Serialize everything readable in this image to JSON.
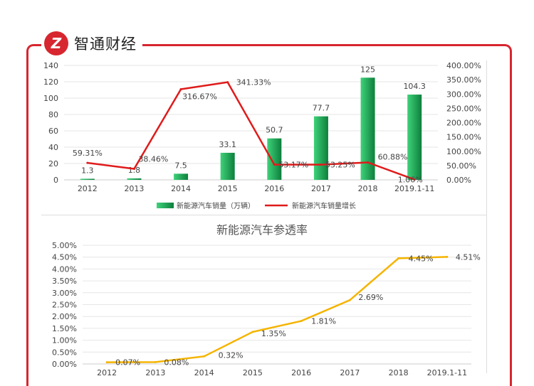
{
  "brand": {
    "name": "智通财经",
    "logo_text": "Z"
  },
  "chart_data": [
    {
      "type": "bar+line",
      "categories": [
        "2012",
        "2013",
        "2014",
        "2015",
        "2016",
        "2017",
        "2018",
        "2019.1-11"
      ],
      "series": [
        {
          "name": "新能源汽车销量（万辆）",
          "type": "bar",
          "axis": "left",
          "values": [
            1.3,
            1.8,
            7.5,
            33.1,
            50.7,
            77.7,
            125,
            104.3
          ],
          "labels": [
            "1.3",
            "1.8",
            "7.5",
            "33.1",
            "50.7",
            "77.7",
            "125",
            "104.3"
          ],
          "color": "#1aa152"
        },
        {
          "name": "新能源汽车销量增长",
          "type": "line",
          "axis": "right",
          "values": [
            59.31,
            38.46,
            316.67,
            341.33,
            53.17,
            53.25,
            60.88,
            1.06
          ],
          "labels": [
            "59.31%",
            "38.46%",
            "316.67%",
            "341.33%",
            "53.17%",
            "53.25%",
            "60.88%",
            "1.06%"
          ],
          "color": "#e01b1b"
        }
      ],
      "ylim": [
        0,
        140
      ],
      "yticks": [
        "0",
        "20",
        "40",
        "60",
        "80",
        "100",
        "120",
        "140"
      ],
      "y2lim": [
        0,
        400
      ],
      "y2ticks": [
        "0.00%",
        "50.00%",
        "100.00%",
        "150.00%",
        "200.00%",
        "250.00%",
        "300.00%",
        "350.00%",
        "400.00%"
      ],
      "legend": "bottom",
      "grid": true
    },
    {
      "type": "line",
      "title": "新能源汽车参透率",
      "categories": [
        "2012",
        "2013",
        "2014",
        "2015",
        "2016",
        "2017",
        "2018",
        "2019.1-11"
      ],
      "series": [
        {
          "name": "参透率",
          "values": [
            0.07,
            0.08,
            0.32,
            1.35,
            1.81,
            2.69,
            4.45,
            4.51
          ],
          "labels": [
            "0.07%",
            "0.08%",
            "0.32%",
            "1.35%",
            "1.81%",
            "2.69%",
            "4.45%",
            "4.51%"
          ],
          "color": "#f5b400"
        }
      ],
      "ylim": [
        0,
        5
      ],
      "yticks": [
        "0.00%",
        "0.50%",
        "1.00%",
        "1.50%",
        "2.00%",
        "2.50%",
        "3.00%",
        "3.50%",
        "4.00%",
        "4.50%",
        "5.00%"
      ],
      "grid": true
    }
  ]
}
